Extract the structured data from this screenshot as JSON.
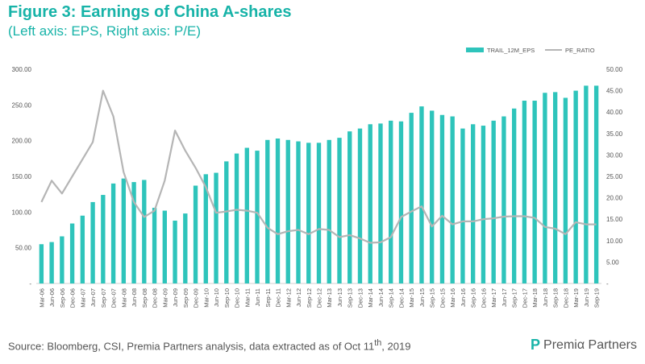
{
  "title": "Figure 3: Earnings of China A-shares",
  "subtitle": "(Left axis: EPS,  Right axis: P/E)",
  "source": {
    "prefix": "Source: Bloomberg, CSI, Premia Partners analysis, data extracted as of Oct 11",
    "sup": "th",
    "suffix": ", 2019"
  },
  "logo": {
    "mark": "P",
    "name": "Premiα Partners"
  },
  "colors": {
    "eps": "#2ec4bb",
    "pe": "#b5b5b5",
    "text": "#555555"
  },
  "chart_data": {
    "type": "bar+line",
    "legend_position": "top-right",
    "categories": [
      "Mar-06",
      "Jun-06",
      "Sep-06",
      "Dec-06",
      "Mar-07",
      "Jun-07",
      "Sep-07",
      "Dec-07",
      "Mar-08",
      "Jun-08",
      "Sep-08",
      "Dec-08",
      "Mar-09",
      "Jun-09",
      "Sep-09",
      "Dec-09",
      "Mar-10",
      "Jun-10",
      "Sep-10",
      "Dec-10",
      "Mar-11",
      "Jun-11",
      "Sep-11",
      "Dec-11",
      "Mar-12",
      "Jun-12",
      "Sep-12",
      "Dec-12",
      "Mar-13",
      "Jun-13",
      "Sep-13",
      "Dec-13",
      "Mar-14",
      "Jun-14",
      "Sep-14",
      "Dec-14",
      "Mar-15",
      "Jun-15",
      "Sep-15",
      "Dec-15",
      "Mar-16",
      "Jun-16",
      "Sep-16",
      "Dec-16",
      "Mar-17",
      "Jun-17",
      "Sep-17",
      "Dec-17",
      "Mar-18",
      "Jun-18",
      "Sep-18",
      "Dec-18",
      "Mar-19",
      "Jun-19",
      "Sep-19"
    ],
    "series": [
      {
        "name": "TRAIL_12M_EPS",
        "kind": "bar",
        "axis": "left",
        "values": [
          55,
          58,
          66,
          84,
          95,
          114,
          124,
          140,
          147,
          142,
          145,
          106,
          102,
          88,
          98,
          137,
          153,
          155,
          171,
          182,
          190,
          186,
          201,
          203,
          201,
          199,
          197,
          197,
          201,
          204,
          213,
          217,
          223,
          224,
          228,
          227,
          239,
          248,
          242,
          236,
          234,
          217,
          223,
          221,
          228,
          234,
          245,
          256,
          256,
          267,
          268,
          260,
          270,
          277,
          277
        ]
      },
      {
        "name": "PE_RATIO",
        "kind": "line",
        "axis": "right",
        "values": [
          19,
          24,
          21,
          25,
          29,
          33,
          45,
          39,
          26,
          19,
          15.5,
          17,
          24,
          35.7,
          31,
          27,
          22.5,
          16.5,
          16.8,
          17.2,
          17,
          16.5,
          13,
          11.5,
          12.2,
          12.5,
          11.5,
          12.7,
          12.5,
          10.8,
          11.3,
          10.5,
          9.5,
          9.6,
          10.8,
          15.5,
          16.8,
          18,
          13.3,
          15.8,
          13.8,
          14.5,
          14.5,
          15,
          15.2,
          15.6,
          15.7,
          15.7,
          15.3,
          13.2,
          12.8,
          11.5,
          14.3,
          13.8,
          13.8
        ]
      }
    ],
    "yleft": {
      "min": 0,
      "max": 300,
      "step": 50,
      "ticks": [
        "-",
        "50.00",
        "100.00",
        "150.00",
        "200.00",
        "250.00",
        "300.00"
      ]
    },
    "yright": {
      "min": 0,
      "max": 50,
      "step": 5,
      "ticks": [
        "-",
        "5.00",
        "10.00",
        "15.00",
        "20.00",
        "25.00",
        "30.00",
        "35.00",
        "40.00",
        "45.00",
        "50.00"
      ]
    },
    "grid": false
  }
}
